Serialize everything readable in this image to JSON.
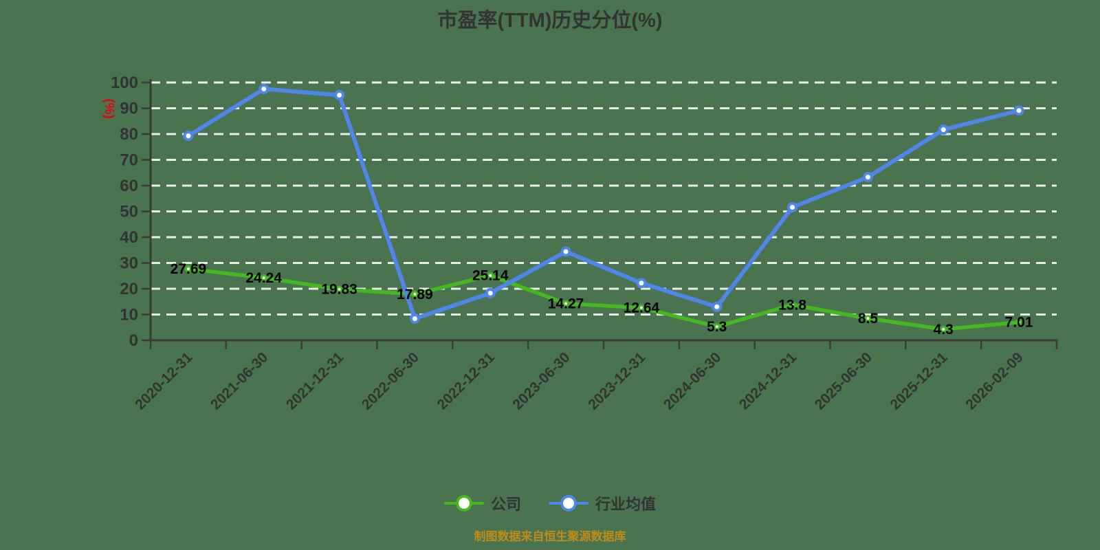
{
  "title": "市盈率(TTM)历史分位(%)",
  "y_axis_unit_label": "(%)",
  "footer_note": "制图数据来自恒生聚源数据库",
  "colors": {
    "background": "#4a734f",
    "axis": "#3b3b3b",
    "grid": "rgba(255,255,255,0.88)",
    "tick_label": "#333333",
    "data_label": "#000000",
    "y_unit_label": "#e60012",
    "footer": "#bf8c1a",
    "company_series": "#45b821",
    "industry_series": "#4f86ea"
  },
  "chart_data": {
    "type": "line",
    "title": "市盈率(TTM)历史分位(%)",
    "ylabel": "(%)",
    "ylim": [
      0,
      100
    ],
    "y_ticks": [
      0,
      10,
      20,
      30,
      40,
      50,
      60,
      70,
      80,
      90,
      100
    ],
    "grid": "horizontal white dashed lines",
    "legend_position": "bottom",
    "categories": [
      "2020-12-31",
      "2021-06-30",
      "2021-12-31",
      "2022-06-30",
      "2022-12-31",
      "2023-06-30",
      "2023-12-31",
      "2024-06-30",
      "2024-12-31",
      "2025-06-30",
      "2025-12-31",
      "2026-02-09"
    ],
    "series": [
      {
        "name": "公司",
        "color": "#45b821",
        "marker_radius": 3.5,
        "marker_stroke": 3,
        "line_width": 5.5,
        "show_labels": true,
        "values": [
          27.69,
          24.24,
          19.83,
          17.89,
          25.14,
          14.27,
          12.64,
          5.3,
          13.8,
          8.5,
          4.3,
          7.01
        ],
        "labels": [
          "27.69",
          "24.24",
          "19.83",
          "17.89",
          "25.14",
          "14.27",
          "12.64",
          "5.3",
          "13.8",
          "8.5",
          "4.3",
          "7.01"
        ]
      },
      {
        "name": "行业均值",
        "color": "#4f86ea",
        "marker_radius": 5.5,
        "marker_stroke": 4,
        "line_width": 6,
        "show_labels": false,
        "values": [
          79.3,
          97.5,
          95.1,
          8.4,
          18.3,
          34.4,
          22.2,
          13,
          51.6,
          63.3,
          81.7,
          89.1
        ],
        "labels": []
      }
    ]
  }
}
